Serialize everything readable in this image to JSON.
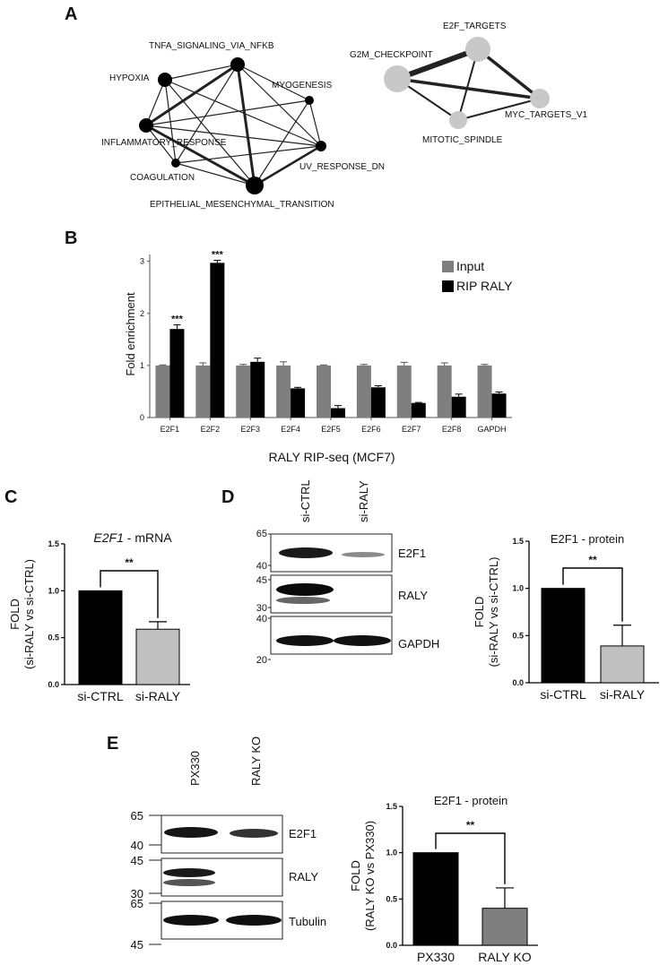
{
  "panels": [
    "A",
    "B",
    "C",
    "D",
    "E"
  ],
  "panel_a": {
    "network_left": {
      "nodes": [
        "TNFA_SIGNALING_VIA_NFKB",
        "HYPOXIA",
        "MYOGENESIS",
        "INFLAMMATORY_RESPONSE",
        "COAGULATION",
        "UV_RESPONSE_DN",
        "EPITHELIAL_MESENCHYMAL_TRANSITION"
      ]
    },
    "network_right": {
      "nodes": [
        "E2F_TARGETS",
        "G2M_CHECKPOINT",
        "MYC_TARGETS_V1",
        "MITOTIC_SPINDLE"
      ]
    }
  },
  "chart_data": [
    {
      "id": "B",
      "type": "bar",
      "categories": [
        "E2F1",
        "E2F2",
        "E2F3",
        "E2F4",
        "E2F5",
        "E2F6",
        "E2F7",
        "E2F8",
        "GAPDH"
      ],
      "series": [
        {
          "name": "Input",
          "values": [
            1,
            1,
            1,
            1,
            1,
            1,
            1,
            1,
            1
          ],
          "errors": [
            0.01,
            0.05,
            0.02,
            0.07,
            0.01,
            0.02,
            0.06,
            0.05,
            0.02
          ],
          "color": "#7f7f7f"
        },
        {
          "name": "RIP RALY",
          "values": [
            1.7,
            2.97,
            1.07,
            0.56,
            0.18,
            0.58,
            0.28,
            0.4,
            0.46
          ],
          "errors": [
            0.08,
            0.05,
            0.07,
            0.02,
            0.05,
            0.03,
            0.01,
            0.05,
            0.03
          ],
          "color": "#000000"
        }
      ],
      "significance": [
        {
          "category": "E2F1",
          "label": "***"
        },
        {
          "category": "E2F2",
          "label": "***"
        }
      ],
      "ylabel": "Fold enrichment",
      "xlabel": "RALY RIP-seq (MCF7)",
      "ylim": [
        0,
        3.2
      ],
      "yticks": [
        "0",
        "1",
        "2",
        "3"
      ],
      "legend_position": "top-right"
    },
    {
      "id": "C",
      "type": "bar",
      "title_italic": "E2F1",
      "title_rest": " - mRNA",
      "categories": [
        "si-CTRL",
        "si-RALY"
      ],
      "values": [
        1.0,
        0.59
      ],
      "errors": [
        0,
        0.08
      ],
      "colors": [
        "#000000",
        "#c0c0c0"
      ],
      "ylabel_line1": "FOLD",
      "ylabel_line2": "(si-RALY vs si-CTRL)",
      "ylim": [
        0,
        1.5
      ],
      "yticks": [
        "0.0",
        "0.5",
        "1.0",
        "1.5"
      ],
      "significance": "**"
    },
    {
      "id": "D",
      "type": "bar",
      "title": "E2F1 - protein",
      "categories": [
        "si-CTRL",
        "si-RALY"
      ],
      "values": [
        1.0,
        0.39
      ],
      "errors": [
        0,
        0.22
      ],
      "colors": [
        "#000000",
        "#c0c0c0"
      ],
      "ylabel_line1": "FOLD",
      "ylabel_line2": "(si-RALY vs si-CTRL)",
      "ylim": [
        0,
        1.5
      ],
      "yticks": [
        "0.0",
        "0.5",
        "1.0",
        "1.5"
      ],
      "significance": "**"
    },
    {
      "id": "E",
      "type": "bar",
      "title": "E2F1 - protein",
      "categories": [
        "PX330",
        "RALY KO"
      ],
      "values": [
        1.0,
        0.4
      ],
      "errors": [
        0,
        0.22
      ],
      "colors": [
        "#000000",
        "#7f7f7f"
      ],
      "ylabel_line1": "FOLD",
      "ylabel_line2": "(RALY KO vs PX330)",
      "ylim": [
        0,
        1.5
      ],
      "yticks": [
        "0.0",
        "0.5",
        "1.0",
        "1.5"
      ],
      "significance": "**"
    }
  ],
  "blot_d": {
    "lanes": [
      "si-CTRL",
      "si-RALY"
    ],
    "bands": [
      "E2F1",
      "RALY",
      "GAPDH"
    ],
    "markers": [
      "65",
      "40",
      "45",
      "30",
      "40",
      "20"
    ]
  },
  "blot_e": {
    "lanes": [
      "PX330",
      "RALY KO"
    ],
    "bands": [
      "E2F1",
      "RALY",
      "Tubulin"
    ],
    "markers": [
      "65",
      "40",
      "45",
      "30",
      "65",
      "45"
    ]
  }
}
